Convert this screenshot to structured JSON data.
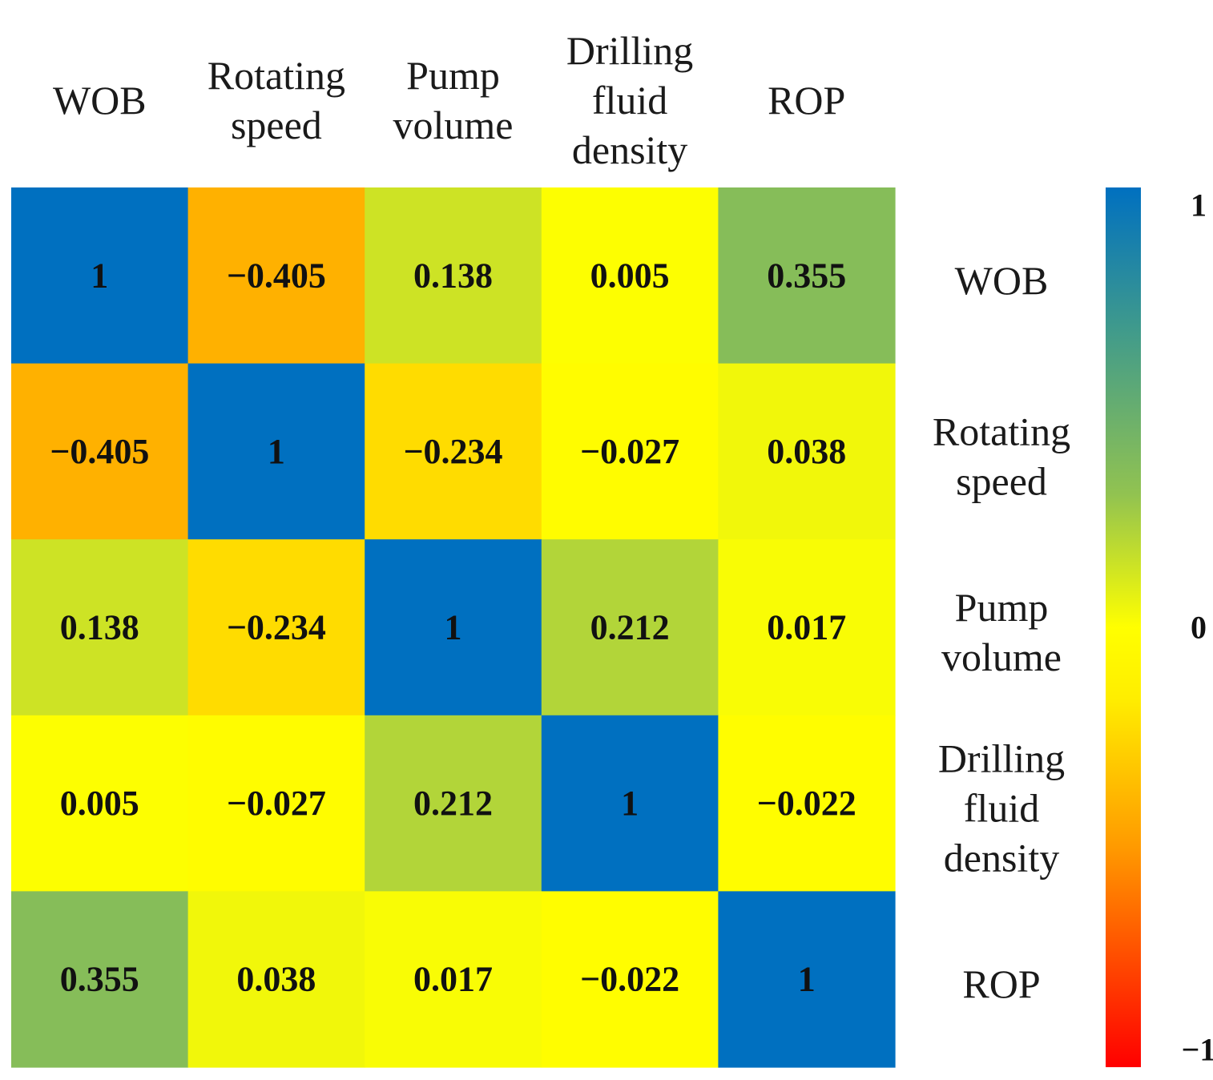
{
  "chart_data": {
    "type": "heatmap",
    "title": "",
    "variables": [
      [
        "WOB"
      ],
      [
        "Rotating",
        "speed"
      ],
      [
        "Pump",
        "volume"
      ],
      [
        "Drilling",
        "fluid",
        "density"
      ],
      [
        "ROP"
      ]
    ],
    "cell_labels": [
      [
        "1",
        "−0.405",
        "0.138",
        "0.005",
        "0.355"
      ],
      [
        "−0.405",
        "1",
        "−0.234",
        "−0.027",
        "0.038"
      ],
      [
        "0.138",
        "−0.234",
        "1",
        "0.212",
        "0.017"
      ],
      [
        "0.005",
        "−0.027",
        "0.212",
        "1",
        "−0.022"
      ],
      [
        "0.355",
        "0.038",
        "0.017",
        "−0.022",
        "1"
      ]
    ],
    "values": [
      [
        1,
        -0.405,
        0.138,
        0.005,
        0.355
      ],
      [
        -0.405,
        1,
        -0.234,
        -0.027,
        0.038
      ],
      [
        0.138,
        -0.234,
        1,
        0.212,
        0.017
      ],
      [
        0.005,
        -0.027,
        0.212,
        1,
        -0.022
      ],
      [
        0.355,
        0.038,
        0.017,
        -0.022,
        1
      ]
    ],
    "colorbar": {
      "ticks": [
        {
          "value": 1,
          "label": "1"
        },
        {
          "value": 0,
          "label": "0"
        },
        {
          "value": -1,
          "label": "−1"
        }
      ],
      "vmin": -1,
      "vmax": 1
    },
    "colors": {
      "blue": "#0070c0",
      "teal": "#3f9a8c",
      "green": "#92c350",
      "yellow": "#ffff00",
      "orange": "#ff6a00",
      "red": "#ff0000"
    },
    "column_labels_position": "top",
    "row_labels_position": "right",
    "colorbar_position": "right"
  }
}
